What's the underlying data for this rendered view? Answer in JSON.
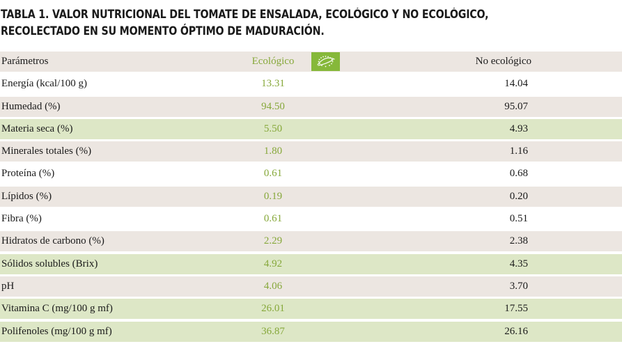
{
  "title_line1": "TABLA 1. VALOR NUTRICIONAL DEL TOMATE DE ENSALADA, ECOLÓGICO Y NO ECOLÓGICO,",
  "title_line2": "RECOLECTADO EN SU MOMENTO ÓPTIMO DE MADURACIÓN.",
  "header": {
    "param": "Parámetros",
    "eco": "Ecológico",
    "noeco": "No ecológico"
  },
  "colors": {
    "eco_text": "#86a83a",
    "row_grey": "#ece6e1",
    "row_green": "#dde7c6",
    "eu_organic_logo": "#86b83a"
  },
  "icons": {
    "eco_logo": "eu-organic-leaf-icon"
  },
  "rows": [
    {
      "param": "Energía (kcal/100 g)",
      "eco": "13.31",
      "noeco": "14.04"
    },
    {
      "param": "Humedad (%)",
      "eco": "94.50",
      "noeco": "95.07"
    },
    {
      "param": "Materia seca (%)",
      "eco": "5.50",
      "noeco": "4.93"
    },
    {
      "param": "Minerales totales (%)",
      "eco": "1.80",
      "noeco": "1.16"
    },
    {
      "param": "Proteína (%)",
      "eco": "0.61",
      "noeco": "0.68"
    },
    {
      "param": "Lípidos (%)",
      "eco": "0.19",
      "noeco": "0.20"
    },
    {
      "param": "Fibra (%)",
      "eco": "0.61",
      "noeco": "0.51"
    },
    {
      "param": "Hidratos de carbono (%)",
      "eco": "2.29",
      "noeco": "2.38"
    },
    {
      "param": "Sólidos solubles (Brix)",
      "eco": "4.92",
      "noeco": "4.35"
    },
    {
      "param": "pH",
      "eco": "4.06",
      "noeco": "3.70"
    },
    {
      "param": "Vitamina C (mg/100 g mf)",
      "eco": "26.01",
      "noeco": "17.55"
    },
    {
      "param": "Polifenoles (mg/100 g mf)",
      "eco": "36.87",
      "noeco": "26.16"
    }
  ]
}
